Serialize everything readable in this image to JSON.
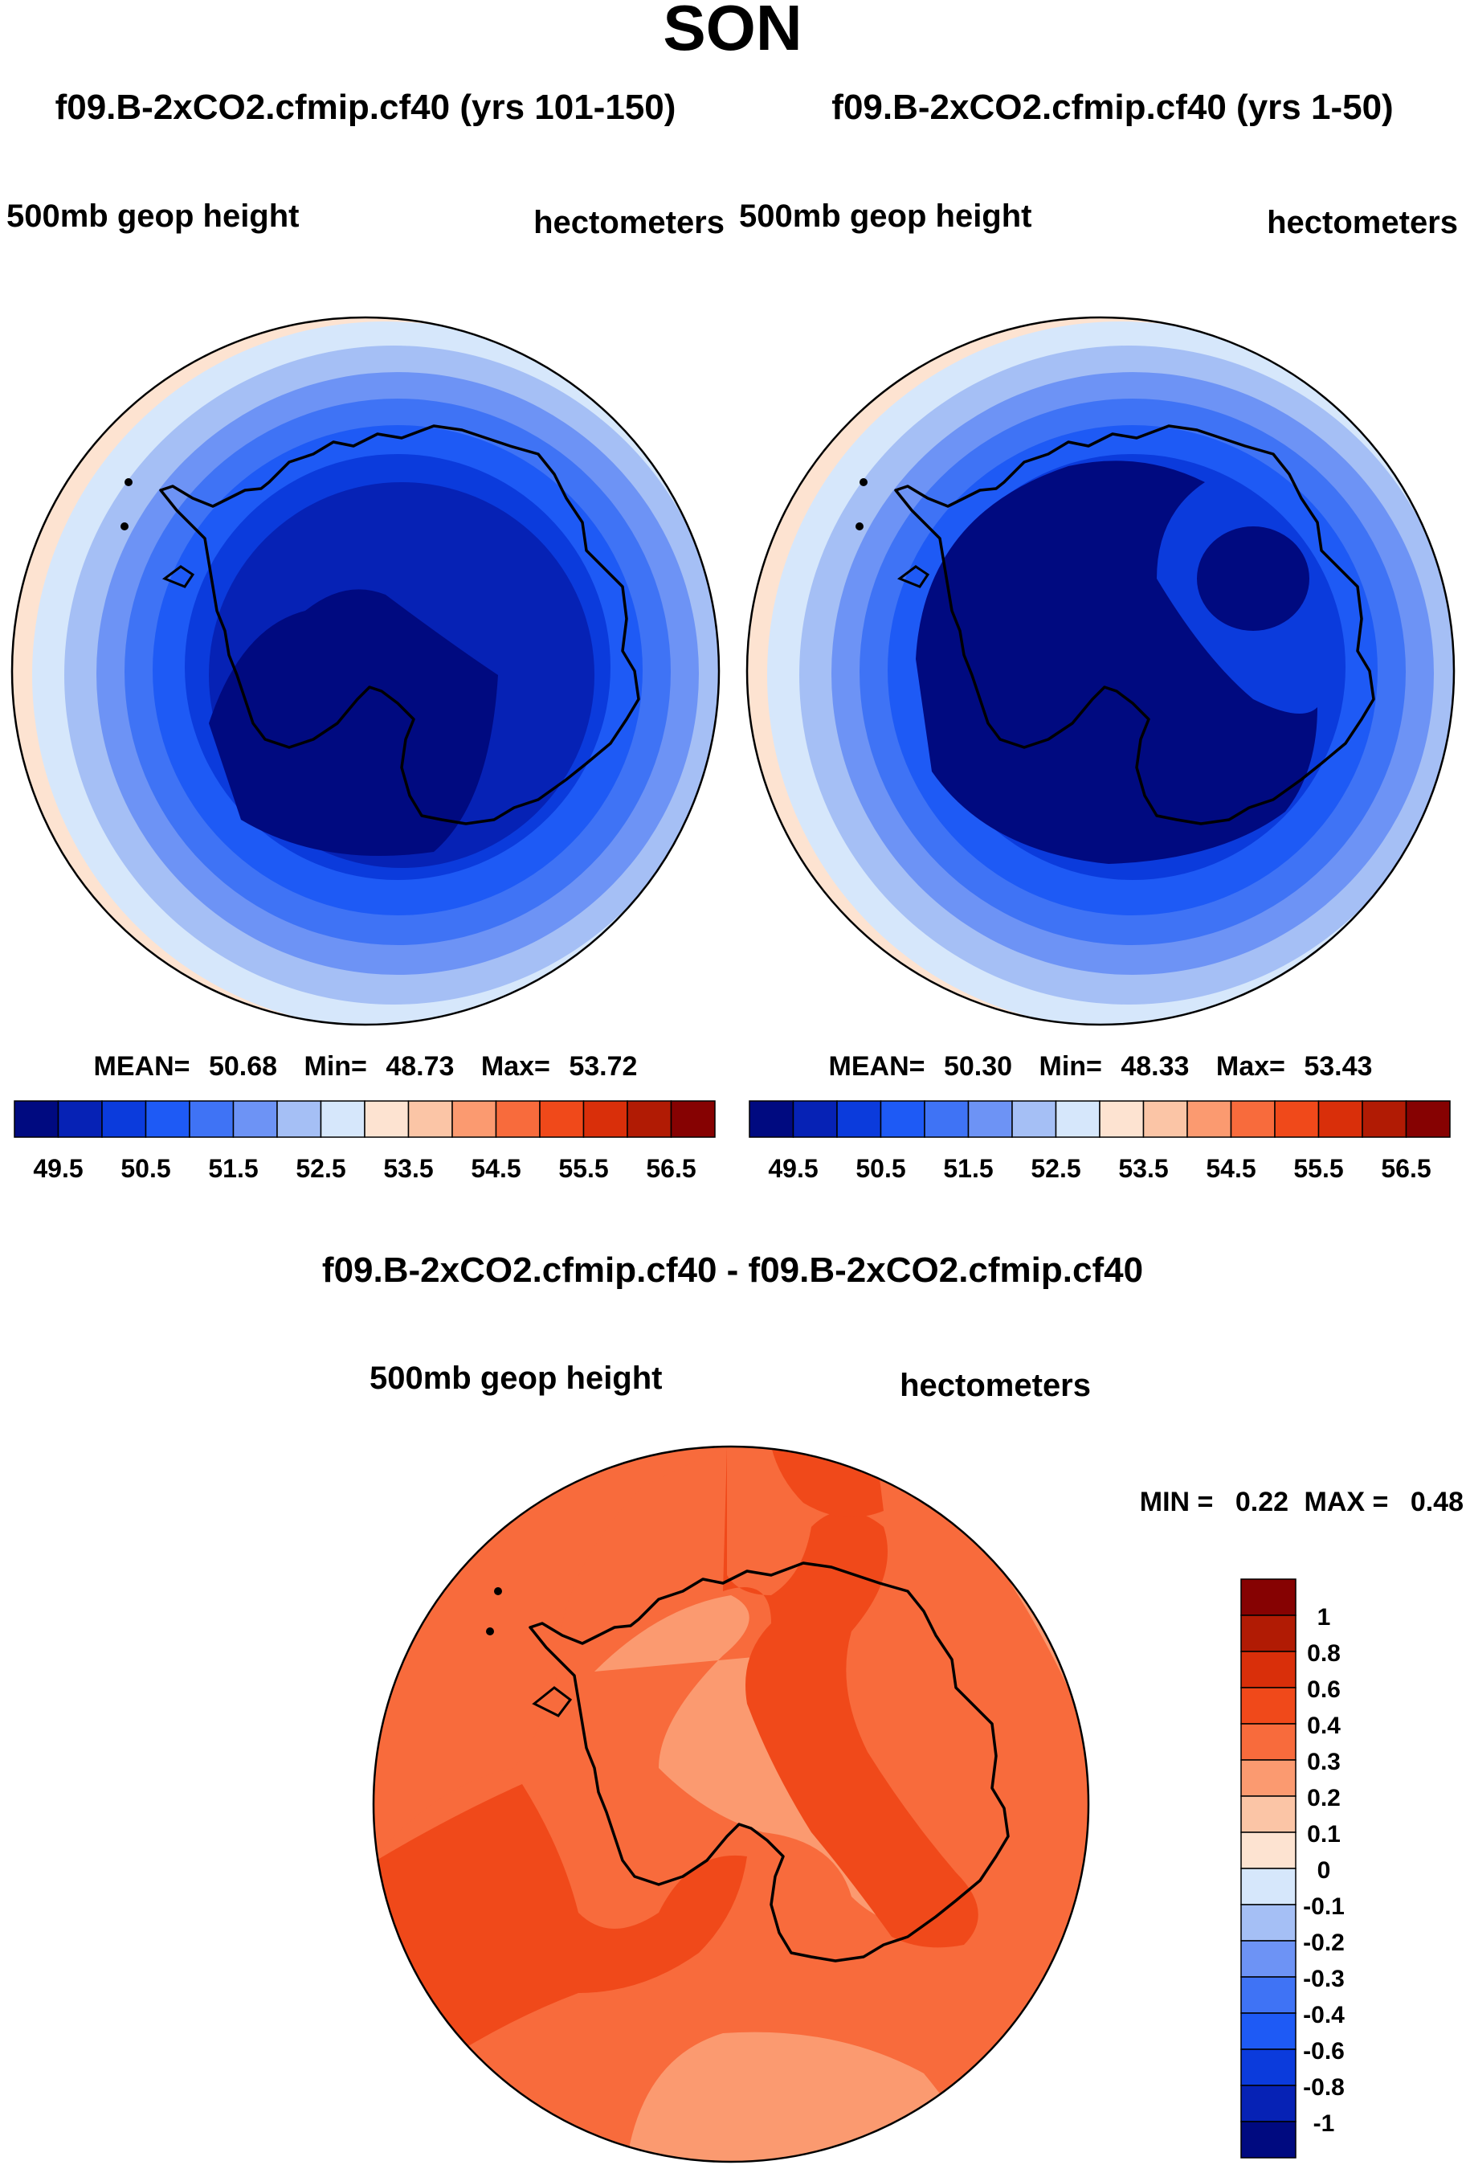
{
  "page": {
    "season": "SON"
  },
  "panels": [
    {
      "case_title": "f09.B-2xCO2.cfmip.cf40 (yrs 101-150)",
      "field_label": "500mb geop height",
      "units_label": "hectometers",
      "stats": {
        "mean_label": "MEAN=",
        "mean": "50.68",
        "min_label": "Min=",
        "min": "48.73",
        "max_label": "Max=",
        "max": "53.72"
      }
    },
    {
      "case_title": "f09.B-2xCO2.cfmip.cf40 (yrs 1-50)",
      "field_label": "500mb geop height",
      "units_label": "hectometers",
      "stats": {
        "mean_label": "MEAN=",
        "mean": "50.30",
        "min_label": "Min=",
        "min": "48.33",
        "max_label": "Max=",
        "max": "53.43"
      }
    }
  ],
  "diff_panel": {
    "title": "f09.B-2xCO2.cfmip.cf40 - f09.B-2xCO2.cfmip.cf40",
    "field_label": "500mb geop height",
    "units_label": "hectometers",
    "min_label": "MIN =",
    "min": "0.22",
    "max_label": "MAX =",
    "max": "0.48"
  },
  "colorbars": {
    "horizontal": {
      "colors": [
        "#000a80",
        "#0622b5",
        "#0b3bdc",
        "#1e5af5",
        "#3f73f5",
        "#6d93f5",
        "#a5bff5",
        "#d6e7fb",
        "#fde3d1",
        "#fbc5a6",
        "#fb9a70",
        "#f86b3c",
        "#f0491a",
        "#d92f0a",
        "#b11b04",
        "#860202"
      ],
      "tick_labels": [
        "49.5",
        "50.5",
        "51.5",
        "52.5",
        "53.5",
        "54.5",
        "55.5",
        "56.5"
      ]
    },
    "vertical": {
      "colors_top_to_bottom": [
        "#860202",
        "#b11b04",
        "#d92f0a",
        "#f0491a",
        "#f86b3c",
        "#fb9a70",
        "#fbc5a6",
        "#fde3d1",
        "#d6e7fb",
        "#a5bff5",
        "#6d93f5",
        "#3f73f5",
        "#1e5af5",
        "#0b3bdc",
        "#0622b5",
        "#000a80"
      ],
      "tick_labels_top_to_bottom": [
        "1",
        "0.8",
        "0.6",
        "0.4",
        "0.3",
        "0.2",
        "0.1",
        "0",
        "-0.1",
        "-0.2",
        "-0.3",
        "-0.4",
        "-0.6",
        "-0.8",
        "-1"
      ]
    }
  }
}
